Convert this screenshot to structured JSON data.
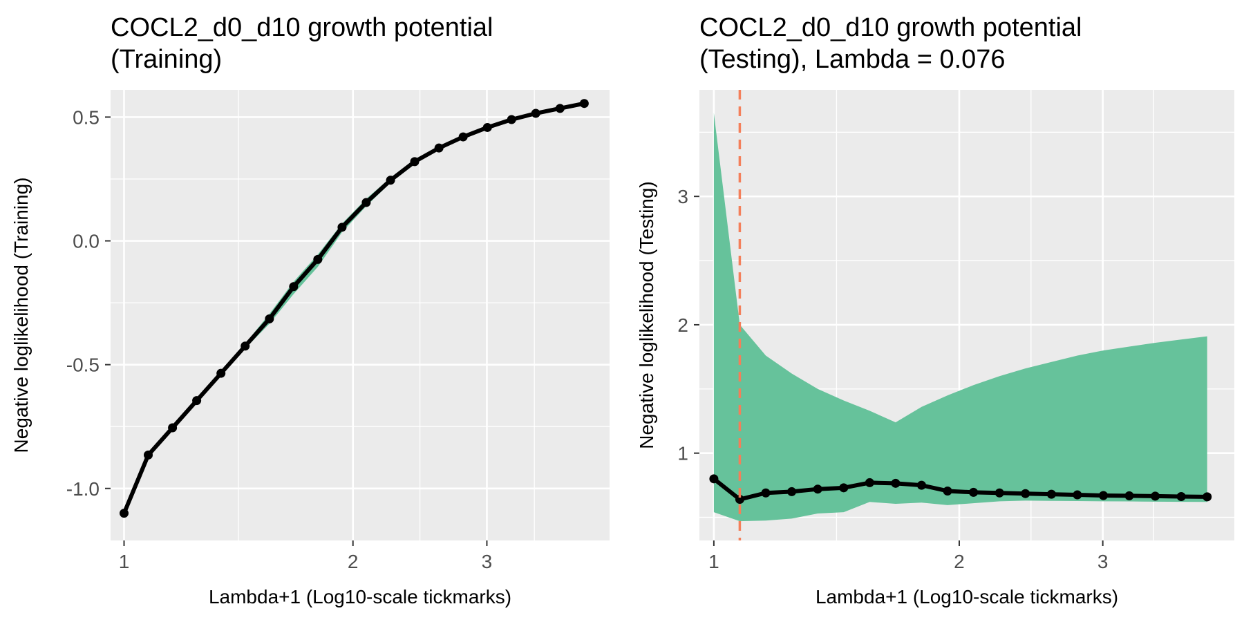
{
  "chart_data": [
    {
      "type": "line",
      "title_line1": "COCL2_d0_d10 growth potential",
      "title_line2": "(Training)",
      "xlabel": "Lambda+1 (Log10-scale tickmarks)",
      "ylabel": "Negative loglikelihood (Training)",
      "x_scale": "log10",
      "xlim": [
        0.96,
        4.35
      ],
      "ylim": [
        -1.21,
        0.61
      ],
      "x_ticks": [
        1,
        2,
        3
      ],
      "x_tick_labels": [
        "1",
        "2",
        "3"
      ],
      "y_ticks": [
        -1.0,
        -0.5,
        0.0,
        0.5
      ],
      "y_tick_labels": [
        "-1.0",
        "-0.5",
        "0.0",
        "0.5"
      ],
      "grid": true,
      "band_color": "#66c29b",
      "line_color": "#000000",
      "series": [
        {
          "x": [
            1.0,
            1.076,
            1.158,
            1.246,
            1.341,
            1.443,
            1.553,
            1.671,
            1.798,
            1.935,
            2.082,
            2.241,
            2.411,
            2.595,
            2.792,
            3.005,
            3.233,
            3.479,
            3.744,
            4.029
          ],
          "values": [
            -1.1,
            -0.865,
            -0.755,
            -0.645,
            -0.535,
            -0.425,
            -0.315,
            -0.185,
            -0.075,
            0.055,
            0.155,
            0.245,
            0.32,
            0.375,
            0.42,
            0.458,
            0.49,
            0.515,
            0.535,
            0.555
          ],
          "lower": [
            -1.1,
            -0.875,
            -0.765,
            -0.655,
            -0.545,
            -0.435,
            -0.335,
            -0.215,
            -0.105,
            0.035,
            0.14,
            0.235,
            0.31,
            0.37,
            0.415,
            0.454,
            0.487,
            0.512,
            0.532,
            0.552
          ],
          "upper": [
            -1.1,
            -0.855,
            -0.745,
            -0.635,
            -0.525,
            -0.415,
            -0.295,
            -0.165,
            -0.055,
            0.07,
            0.17,
            0.255,
            0.33,
            0.38,
            0.425,
            0.462,
            0.493,
            0.518,
            0.538,
            0.558
          ]
        }
      ]
    },
    {
      "type": "line",
      "title_line1": "COCL2_d0_d10 growth potential",
      "title_line2": "(Testing), Lambda = 0.076",
      "xlabel": "Lambda+1 (Log10-scale tickmarks)",
      "ylabel": "Negative loglikelihood (Testing)",
      "x_scale": "log10",
      "xlim": [
        0.96,
        4.35
      ],
      "ylim": [
        0.32,
        3.83
      ],
      "x_ticks": [
        1,
        2,
        3
      ],
      "x_tick_labels": [
        "1",
        "2",
        "3"
      ],
      "y_ticks": [
        1,
        2,
        3
      ],
      "y_tick_labels": [
        "1",
        "2",
        "3"
      ],
      "grid": true,
      "band_color": "#66c29b",
      "line_color": "#000000",
      "vline_x": 1.076,
      "vline_color": "#f47f5a",
      "series": [
        {
          "x": [
            1.0,
            1.076,
            1.158,
            1.246,
            1.341,
            1.443,
            1.553,
            1.671,
            1.798,
            1.935,
            2.082,
            2.241,
            2.411,
            2.595,
            2.792,
            3.005,
            3.233,
            3.479,
            3.744,
            4.029
          ],
          "values": [
            0.8,
            0.64,
            0.69,
            0.7,
            0.72,
            0.73,
            0.77,
            0.765,
            0.75,
            0.705,
            0.695,
            0.69,
            0.685,
            0.68,
            0.675,
            0.67,
            0.668,
            0.665,
            0.662,
            0.66
          ],
          "lower": [
            0.54,
            0.47,
            0.475,
            0.49,
            0.53,
            0.54,
            0.62,
            0.605,
            0.615,
            0.595,
            0.61,
            0.625,
            0.63,
            0.628,
            0.627,
            0.625,
            0.624,
            0.622,
            0.621,
            0.62
          ],
          "upper": [
            3.65,
            2.0,
            1.76,
            1.62,
            1.5,
            1.41,
            1.33,
            1.24,
            1.36,
            1.45,
            1.53,
            1.6,
            1.66,
            1.71,
            1.76,
            1.8,
            1.83,
            1.86,
            1.885,
            1.91
          ]
        }
      ]
    }
  ]
}
